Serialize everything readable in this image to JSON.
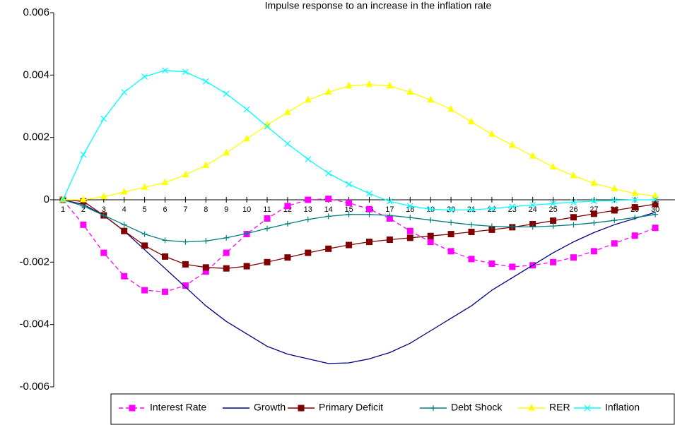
{
  "chart_data": {
    "type": "line",
    "title": "Impulse response to an increase in the inflation rate",
    "xlabel": "",
    "ylabel": "",
    "x": [
      1,
      2,
      3,
      4,
      5,
      6,
      7,
      8,
      9,
      10,
      11,
      12,
      13,
      14,
      15,
      16,
      17,
      18,
      19,
      20,
      21,
      22,
      23,
      24,
      25,
      26,
      27,
      28,
      29,
      30
    ],
    "ylim": [
      -0.006,
      0.006
    ],
    "yticks": [
      -0.006,
      -0.004,
      -0.002,
      0,
      0.002,
      0.004,
      0.006
    ],
    "ytick_labels": [
      "-0.006",
      "-0.004",
      "-0.002",
      "0",
      "0.002",
      "0.004",
      "0.006"
    ],
    "grid": false,
    "legend_position": "bottom",
    "series": [
      {
        "name": "Interest Rate",
        "color": "#FF00FF",
        "dash": "6,4",
        "marker": "square",
        "values": [
          0,
          -0.0008,
          -0.0017,
          -0.00245,
          -0.0029,
          -0.00295,
          -0.00275,
          -0.0023,
          -0.0017,
          -0.0011,
          -0.0006,
          -0.0002,
          0,
          3e-05,
          -0.0001,
          -0.0003,
          -0.0006,
          -0.001,
          -0.00135,
          -0.00165,
          -0.0019,
          -0.00205,
          -0.00215,
          -0.0021,
          -0.002,
          -0.00185,
          -0.00165,
          -0.0014,
          -0.00115,
          -0.0009
        ]
      },
      {
        "name": "Growth",
        "color": "#000080",
        "dash": "",
        "marker": "none",
        "values": [
          0,
          -0.00015,
          -0.0005,
          -0.001,
          -0.0016,
          -0.0022,
          -0.0028,
          -0.0034,
          -0.0039,
          -0.0043,
          -0.0047,
          -0.00495,
          -0.0051,
          -0.00525,
          -0.00523,
          -0.0051,
          -0.0049,
          -0.0046,
          -0.0042,
          -0.0038,
          -0.0034,
          -0.0029,
          -0.0025,
          -0.0021,
          -0.0017,
          -0.00135,
          -0.00105,
          -0.0008,
          -0.0006,
          -0.0004
        ]
      },
      {
        "name": "Primary Deficit",
        "color": "#800000",
        "dash": "",
        "marker": "square",
        "values": [
          0,
          -5e-05,
          -0.0005,
          -0.001,
          -0.00147,
          -0.00182,
          -0.00207,
          -0.00217,
          -0.0022,
          -0.00213,
          -0.002,
          -0.00185,
          -0.0017,
          -0.00157,
          -0.00145,
          -0.00135,
          -0.00128,
          -0.00122,
          -0.00116,
          -0.0011,
          -0.00103,
          -0.00096,
          -0.00088,
          -0.00078,
          -0.00067,
          -0.00056,
          -0.00045,
          -0.00034,
          -0.00024,
          -0.00014
        ]
      },
      {
        "name": "Debt Shock",
        "color": "#008080",
        "dash": "",
        "marker": "plus",
        "values": [
          0,
          -0.0002,
          -0.0005,
          -0.0008,
          -0.0011,
          -0.0013,
          -0.00135,
          -0.00132,
          -0.00122,
          -0.00108,
          -0.00092,
          -0.00077,
          -0.00063,
          -0.00053,
          -0.00047,
          -0.00047,
          -0.0005,
          -0.00057,
          -0.00065,
          -0.00073,
          -0.0008,
          -0.00085,
          -0.00087,
          -0.00087,
          -0.00084,
          -0.0008,
          -0.00074,
          -0.00066,
          -0.00057,
          -0.00047
        ]
      },
      {
        "name": "RER",
        "color": "#FFFF00",
        "dash": "",
        "marker": "triangle",
        "values": [
          0,
          0,
          0.0001,
          0.00025,
          0.0004,
          0.00055,
          0.0008,
          0.0011,
          0.0015,
          0.00195,
          0.0024,
          0.0028,
          0.0032,
          0.00345,
          0.00365,
          0.0037,
          0.00365,
          0.00345,
          0.0032,
          0.0029,
          0.0025,
          0.0021,
          0.00175,
          0.0014,
          0.00105,
          0.00077,
          0.00053,
          0.00035,
          0.0002,
          0.00012
        ]
      },
      {
        "name": "Inflation",
        "color": "#00FFFF",
        "dash": "",
        "marker": "x",
        "values": [
          0,
          0.00145,
          0.0026,
          0.00345,
          0.00395,
          0.00415,
          0.0041,
          0.0038,
          0.0034,
          0.0029,
          0.00235,
          0.0018,
          0.0013,
          0.00085,
          0.0005,
          0.0002,
          -5e-05,
          -0.0002,
          -0.0003,
          -0.00033,
          -0.00032,
          -0.00028,
          -0.00022,
          -0.00017,
          -0.00012,
          -8e-05,
          -4e-05,
          -2e-05,
          0,
          0
        ]
      }
    ]
  }
}
